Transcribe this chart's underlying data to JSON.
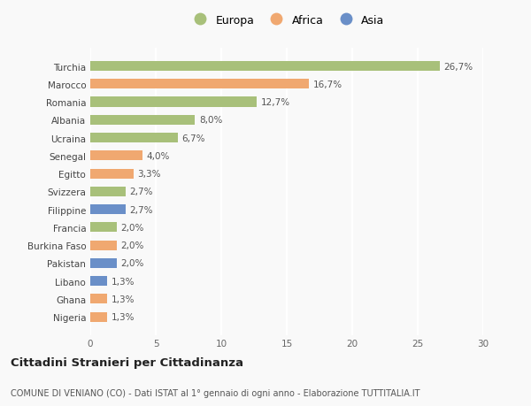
{
  "categories": [
    "Turchia",
    "Marocco",
    "Romania",
    "Albania",
    "Ucraina",
    "Senegal",
    "Egitto",
    "Svizzera",
    "Filippine",
    "Francia",
    "Burkina Faso",
    "Pakistan",
    "Libano",
    "Ghana",
    "Nigeria"
  ],
  "values": [
    26.7,
    16.7,
    12.7,
    8.0,
    6.7,
    4.0,
    3.3,
    2.7,
    2.7,
    2.0,
    2.0,
    2.0,
    1.3,
    1.3,
    1.3
  ],
  "labels": [
    "26,7%",
    "16,7%",
    "12,7%",
    "8,0%",
    "6,7%",
    "4,0%",
    "3,3%",
    "2,7%",
    "2,7%",
    "2,0%",
    "2,0%",
    "2,0%",
    "1,3%",
    "1,3%",
    "1,3%"
  ],
  "continent": [
    "Europa",
    "Africa",
    "Europa",
    "Europa",
    "Europa",
    "Africa",
    "Africa",
    "Europa",
    "Asia",
    "Europa",
    "Africa",
    "Asia",
    "Asia",
    "Africa",
    "Africa"
  ],
  "colors": {
    "Europa": "#a8c07a",
    "Africa": "#f0a870",
    "Asia": "#6a8fc8"
  },
  "xlim": [
    0,
    30
  ],
  "xticks": [
    0,
    5,
    10,
    15,
    20,
    25,
    30
  ],
  "title": "Cittadini Stranieri per Cittadinanza",
  "subtitle": "COMUNE DI VENIANO (CO) - Dati ISTAT al 1° gennaio di ogni anno - Elaborazione TUTTITALIA.IT",
  "background_color": "#f9f9f9",
  "grid_color": "#ffffff",
  "bar_height": 0.55,
  "label_fontsize": 7.5,
  "tick_fontsize": 7.5,
  "title_fontsize": 9.5,
  "subtitle_fontsize": 7.0,
  "legend_fontsize": 9.0
}
